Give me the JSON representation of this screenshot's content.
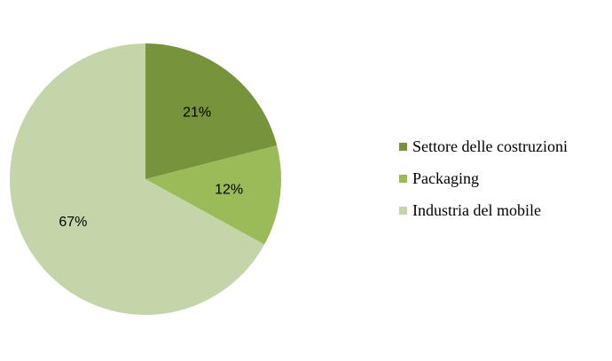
{
  "chart_data": {
    "type": "pie",
    "title": "",
    "start_angle_deg": 0,
    "direction": "clockwise",
    "legend_position": "right",
    "slices": [
      {
        "label": "Settore delle costruzioni",
        "value": 21,
        "data_label": "21%",
        "color": "#77933c"
      },
      {
        "label": "Packaging",
        "value": 12,
        "data_label": "12%",
        "color": "#9bbb59"
      },
      {
        "label": "Industria del mobile",
        "value": 67,
        "data_label": "67%",
        "color": "#c4d6a9"
      }
    ]
  }
}
